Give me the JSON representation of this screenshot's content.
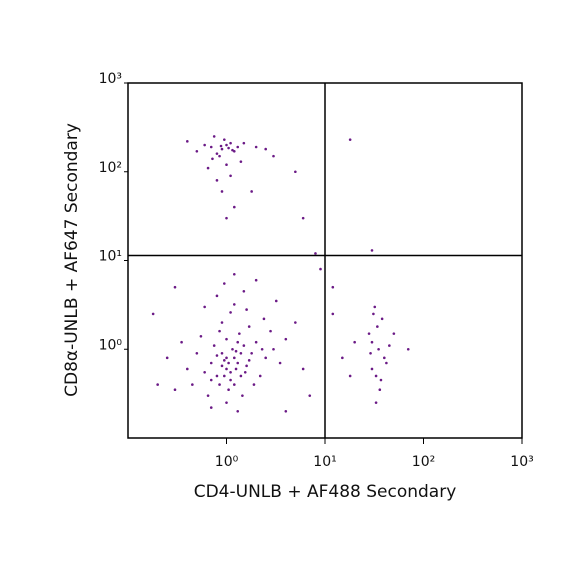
{
  "chart_data": {
    "type": "scatter",
    "xlabel": "CD4-UNLB + AF488 Secondary",
    "ylabel": "CD8α-UNLB + AF647 Secondary",
    "xscale": "log",
    "yscale": "log",
    "xlim": [
      0.1,
      1000
    ],
    "ylim": [
      0.1,
      1000
    ],
    "xticks": [
      {
        "value": 1,
        "label": "10⁰"
      },
      {
        "value": 10,
        "label": "10¹"
      },
      {
        "value": 100,
        "label": "10²"
      },
      {
        "value": 1000,
        "label": "10³"
      }
    ],
    "yticks": [
      {
        "value": 1,
        "label": "10⁰"
      },
      {
        "value": 10,
        "label": "10¹"
      },
      {
        "value": 100,
        "label": "10²"
      },
      {
        "value": 1000,
        "label": "10³"
      }
    ],
    "gates": {
      "x": 10,
      "y": 11.4
    },
    "series": [
      {
        "color": "#6b1a86",
        "x": [
          1.0,
          1.2,
          0.8,
          1.5,
          0.9,
          1.1,
          1.3,
          0.7,
          1.8,
          1.0,
          0.6,
          1.4,
          2.0,
          0.85,
          1.15,
          1.25,
          0.95,
          1.6,
          0.75,
          1.05,
          2.5,
          0.5,
          1.35,
          0.9,
          1.7,
          1.1,
          0.65,
          1.45,
          2.2,
          3.0,
          0.55,
          1.2,
          0.8,
          1.5,
          2.4,
          0.4,
          0.35,
          3.5,
          1.9,
          1.0,
          0.7,
          1.3,
          2.8,
          4.0,
          0.45,
          1.6,
          0.95,
          1.2,
          2.0,
          0.6,
          3.2,
          5.0,
          0.3,
          0.25,
          6.0,
          1.4,
          1.0,
          0.9,
          1.1,
          1.3,
          0.8,
          1.7,
          1.2,
          0.85,
          2.3,
          1.05,
          1.25,
          0.7,
          1.55,
          0.95,
          0.9,
          1.0,
          0.8,
          1.1,
          0.7,
          1.2,
          0.95,
          0.85,
          1.3,
          0.6,
          1.0,
          1.1,
          0.9,
          1.2,
          0.75,
          1.5,
          2.0,
          0.5,
          0.4,
          2.5,
          1.0,
          0.8,
          1.4,
          0.65,
          1.05,
          0.88,
          1.15,
          0.72,
          3.0,
          1.8,
          30,
          35,
          28,
          40,
          33,
          38,
          32,
          36,
          30,
          42,
          34,
          29,
          37,
          31,
          45,
          33,
          15,
          20,
          12,
          50,
          70,
          18,
          18,
          8,
          30,
          6,
          5,
          9,
          12,
          7,
          4,
          0.2,
          0.18,
          0.3
        ],
        "y": [
          0.6,
          0.8,
          0.5,
          1.1,
          0.9,
          0.45,
          0.7,
          0.7,
          0.9,
          1.3,
          0.55,
          0.5,
          1.2,
          0.4,
          1.0,
          0.6,
          0.75,
          0.65,
          1.1,
          0.35,
          0.8,
          0.9,
          1.5,
          2.0,
          1.8,
          2.6,
          0.3,
          0.3,
          0.5,
          1.0,
          1.4,
          3.2,
          4.0,
          4.5,
          2.2,
          0.6,
          1.2,
          0.7,
          0.4,
          0.25,
          0.22,
          0.2,
          1.6,
          1.3,
          0.4,
          2.8,
          5.5,
          7.0,
          6.0,
          3.0,
          3.5,
          2.0,
          0.35,
          0.8,
          0.6,
          0.9,
          0.8,
          0.65,
          0.55,
          1.2,
          0.85,
          0.75,
          0.4,
          1.6,
          1.0,
          0.7,
          0.95,
          0.45,
          0.55,
          0.5,
          180,
          200,
          160,
          210,
          190,
          170,
          230,
          150,
          190,
          200,
          120,
          90,
          60,
          40,
          250,
          210,
          190,
          170,
          220,
          180,
          30,
          80,
          130,
          110,
          185,
          195,
          175,
          140,
          150,
          60,
          0.6,
          1.0,
          1.5,
          0.8,
          0.5,
          2.2,
          3.0,
          0.35,
          1.2,
          0.7,
          1.8,
          0.9,
          0.45,
          2.5,
          1.1,
          0.25,
          0.8,
          1.2,
          2.5,
          1.5,
          1.0,
          0.5,
          230,
          12,
          13,
          30,
          100,
          8,
          5,
          0.3,
          0.2,
          0.4,
          2.5,
          5
        ]
      }
    ]
  }
}
